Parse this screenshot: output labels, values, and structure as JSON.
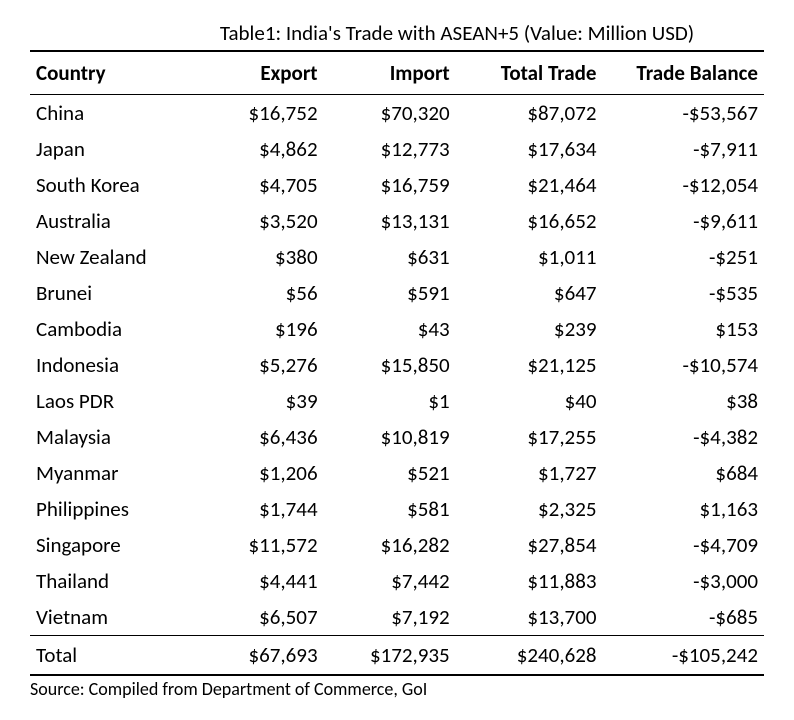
{
  "title": "Table1: India's Trade with ASEAN+5 (Value: Million USD)",
  "columns": [
    "Country",
    "Export",
    "Import",
    "Total Trade",
    "Trade Balance"
  ],
  "rows": [
    {
      "country": "China",
      "export": "$16,752",
      "import": "$70,320",
      "total": "$87,072",
      "balance": "-$53,567"
    },
    {
      "country": "Japan",
      "export": "$4,862",
      "import": "$12,773",
      "total": "$17,634",
      "balance": "-$7,911"
    },
    {
      "country": "South Korea",
      "export": "$4,705",
      "import": "$16,759",
      "total": "$21,464",
      "balance": "-$12,054"
    },
    {
      "country": "Australia",
      "export": "$3,520",
      "import": "$13,131",
      "total": "$16,652",
      "balance": "-$9,611"
    },
    {
      "country": "New Zealand",
      "export": "$380",
      "import": "$631",
      "total": "$1,011",
      "balance": "-$251"
    },
    {
      "country": "Brunei",
      "export": "$56",
      "import": "$591",
      "total": "$647",
      "balance": "-$535"
    },
    {
      "country": "Cambodia",
      "export": "$196",
      "import": "$43",
      "total": "$239",
      "balance": "$153"
    },
    {
      "country": "Indonesia",
      "export": "$5,276",
      "import": "$15,850",
      "total": "$21,125",
      "balance": "-$10,574"
    },
    {
      "country": "Laos PDR",
      "export": "$39",
      "import": "$1",
      "total": "$40",
      "balance": "$38"
    },
    {
      "country": "Malaysia",
      "export": "$6,436",
      "import": "$10,819",
      "total": "$17,255",
      "balance": "-$4,382"
    },
    {
      "country": "Myanmar",
      "export": "$1,206",
      "import": "$521",
      "total": "$1,727",
      "balance": "$684"
    },
    {
      "country": "Philippines",
      "export": "$1,744",
      "import": "$581",
      "total": "$2,325",
      "balance": "$1,163"
    },
    {
      "country": "Singapore",
      "export": "$11,572",
      "import": "$16,282",
      "total": "$27,854",
      "balance": "-$4,709"
    },
    {
      "country": "Thailand",
      "export": "$4,441",
      "import": "$7,442",
      "total": "$11,883",
      "balance": "-$3,000"
    },
    {
      "country": "Vietnam",
      "export": "$6,507",
      "import": "$7,192",
      "total": "$13,700",
      "balance": "-$685"
    }
  ],
  "total": {
    "country": "Total",
    "export": "$67,693",
    "import": "$172,935",
    "total": "$240,628",
    "balance": "-$105,242"
  },
  "source": "Source: Compiled from Department of Commerce, GoI",
  "colors": {
    "text": "#000000",
    "background": "#ffffff",
    "rule": "#000000"
  },
  "font": {
    "family": "Calibri",
    "body_pt": 16,
    "title_pt": 16,
    "source_pt": 14
  }
}
